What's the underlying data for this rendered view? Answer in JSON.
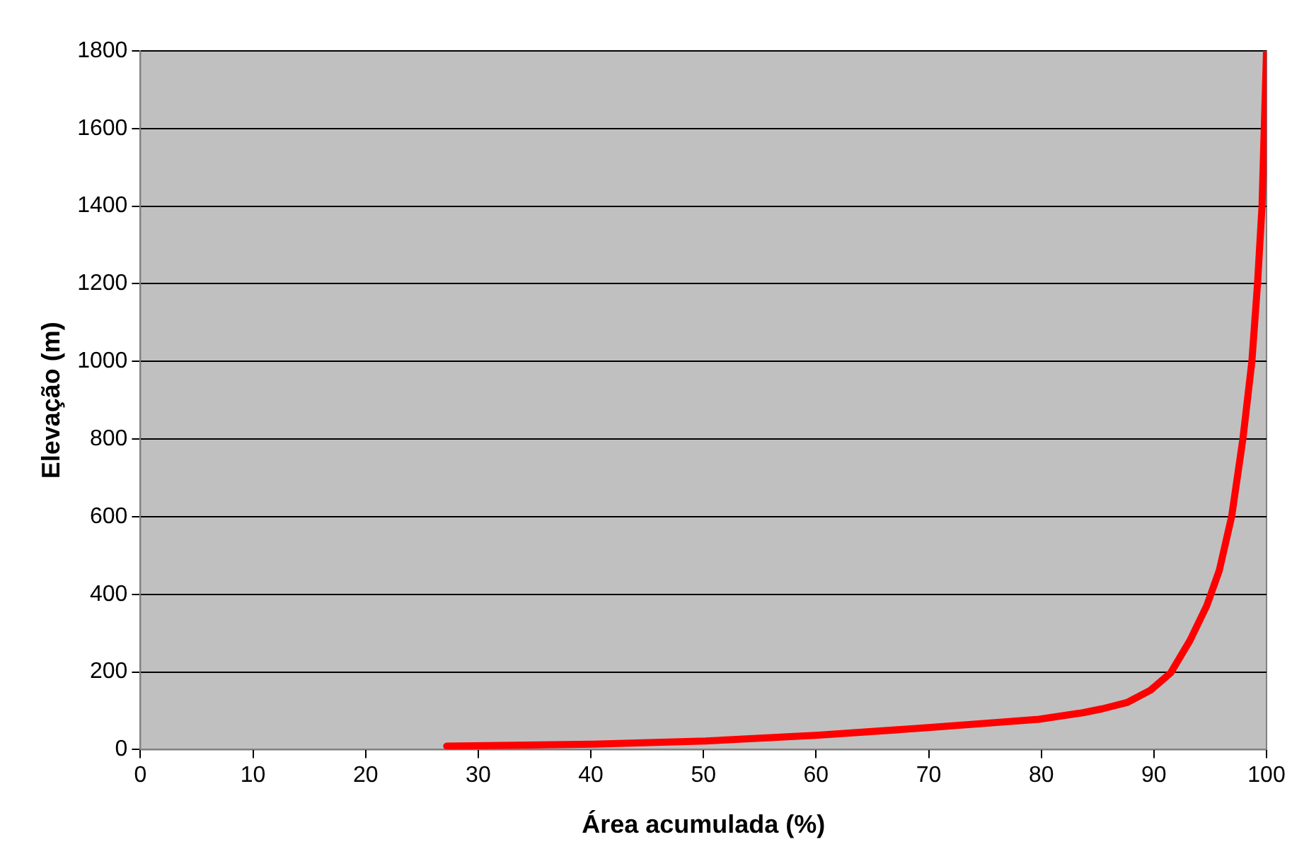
{
  "chart_data": {
    "type": "line",
    "xlabel": "Área acumulada (%)",
    "ylabel": "Elevação (m)",
    "x": [
      27.2,
      40.2,
      50.2,
      60.2,
      70.2,
      79.8,
      83.7,
      85.4,
      87.6,
      89.7,
      91.5,
      93.2,
      94.7,
      95.8,
      96.9,
      97.9,
      98.7,
      99.2,
      99.6,
      100
    ],
    "series": [
      {
        "color": "#ff0000",
        "values": [
          9,
          14,
          22,
          37,
          57,
          78,
          95,
          105,
          121,
          153,
          198,
          281,
          371,
          461,
          600,
          800,
          1000,
          1200,
          1400,
          1800
        ]
      }
    ],
    "xlim": [
      0,
      100
    ],
    "xticks": [
      0,
      10,
      20,
      30,
      40,
      50,
      60,
      70,
      80,
      90,
      100
    ],
    "ylim": [
      0,
      1800
    ],
    "yticks": [
      0,
      200,
      400,
      600,
      800,
      1000,
      1200,
      1400,
      1600,
      1800
    ],
    "grid": "y",
    "legend": false,
    "marker": "none",
    "line_style": "solid"
  }
}
